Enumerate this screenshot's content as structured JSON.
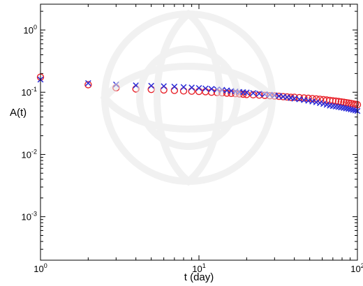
{
  "chart_data": {
    "type": "scatter",
    "xscale": "log",
    "yscale": "log",
    "xlim": [
      1,
      100
    ],
    "ylim": [
      0.0002,
      2.6
    ],
    "xlabel": "t (day)",
    "ylabel": "A(t)",
    "xticks": [
      {
        "value": 1,
        "base": "10",
        "exp": "0"
      },
      {
        "value": 10,
        "base": "10",
        "exp": "1"
      },
      {
        "value": 100,
        "base": "10",
        "exp": "2"
      }
    ],
    "yticks": [
      {
        "value": 0.001,
        "base": "10",
        "exp": "-3"
      },
      {
        "value": 0.01,
        "base": "10",
        "exp": "-2"
      },
      {
        "value": 0.1,
        "base": "10",
        "exp": "-1"
      },
      {
        "value": 1,
        "base": "10",
        "exp": "0"
      }
    ],
    "series": [
      {
        "marker": "circle",
        "color": "#e8222a",
        "x": [
          1,
          2,
          3,
          4,
          5,
          6,
          7,
          8,
          9,
          10,
          11,
          12,
          13,
          14,
          15,
          16,
          17,
          18,
          19,
          20,
          22,
          24,
          26,
          28,
          30,
          32,
          34,
          36,
          38,
          40,
          43,
          46,
          49,
          52,
          55,
          58,
          61,
          64,
          67,
          70,
          73,
          76,
          79,
          82,
          85,
          88,
          91,
          94,
          97,
          100
        ],
        "y": [
          0.175,
          0.132,
          0.118,
          0.113,
          0.111,
          0.109,
          0.107,
          0.105,
          0.104,
          0.103,
          0.102,
          0.1,
          0.099,
          0.098,
          0.097,
          0.096,
          0.095,
          0.094,
          0.093,
          0.092,
          0.091,
          0.09,
          0.089,
          0.088,
          0.087,
          0.086,
          0.085,
          0.084,
          0.083,
          0.083,
          0.082,
          0.081,
          0.08,
          0.079,
          0.078,
          0.077,
          0.076,
          0.075,
          0.074,
          0.073,
          0.072,
          0.071,
          0.07,
          0.069,
          0.068,
          0.067,
          0.066,
          0.065,
          0.064,
          0.063
        ]
      },
      {
        "marker": "x",
        "color": "#2b2bd6",
        "x": [
          1,
          2,
          3,
          4,
          5,
          6,
          7,
          8,
          9,
          10,
          11,
          12,
          13,
          14,
          15,
          16,
          17,
          18,
          19,
          20,
          22,
          24,
          26,
          28,
          30,
          32,
          34,
          36,
          38,
          40,
          43,
          46,
          49,
          52,
          55,
          58,
          61,
          64,
          67,
          70,
          73,
          76,
          79,
          82,
          85,
          88,
          91,
          94,
          97,
          100
        ],
        "y": [
          0.16,
          0.14,
          0.133,
          0.129,
          0.127,
          0.125,
          0.123,
          0.121,
          0.119,
          0.117,
          0.115,
          0.113,
          0.111,
          0.109,
          0.107,
          0.105,
          0.103,
          0.101,
          0.1,
          0.099,
          0.097,
          0.095,
          0.093,
          0.091,
          0.089,
          0.087,
          0.085,
          0.083,
          0.081,
          0.079,
          0.077,
          0.075,
          0.073,
          0.071,
          0.069,
          0.067,
          0.065,
          0.063,
          0.061,
          0.06,
          0.059,
          0.058,
          0.057,
          0.056,
          0.055,
          0.054,
          0.053,
          0.052,
          0.051,
          0.05
        ]
      }
    ]
  }
}
